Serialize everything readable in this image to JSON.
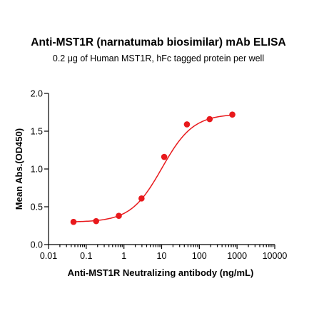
{
  "chart_data": {
    "type": "scatter",
    "title": "Anti-MST1R (narnatumab biosimilar) mAb ELISA",
    "subtitle": "0.2 μg of Human MST1R, hFc tagged protein per well",
    "xlabel": "Anti-MST1R Neutralizing antibody (ng/mL)",
    "ylabel": "Mean Abs.(OD450)",
    "x_scale": "log",
    "xlim": [
      0.01,
      10000
    ],
    "ylim": [
      0.0,
      2.0
    ],
    "x_ticks": [
      0.01,
      0.1,
      1,
      10,
      100,
      1000,
      10000
    ],
    "x_tick_labels": [
      "0.01",
      "0.1",
      "1",
      "10",
      "100",
      "1000",
      "10000"
    ],
    "y_ticks": [
      0.0,
      0.5,
      1.0,
      1.5,
      2.0
    ],
    "y_tick_labels": [
      "0.0",
      "0.5",
      "1.0",
      "1.5",
      "2.0"
    ],
    "grid": false,
    "color": "#e8191c",
    "series": [
      {
        "x": [
          0.046,
          0.183,
          0.732,
          2.93,
          11.7,
          46.9,
          188,
          750
        ],
        "y": [
          0.3,
          0.31,
          0.38,
          0.61,
          1.16,
          1.59,
          1.66,
          1.72
        ],
        "fit": "4PL sigmoid"
      }
    ]
  }
}
